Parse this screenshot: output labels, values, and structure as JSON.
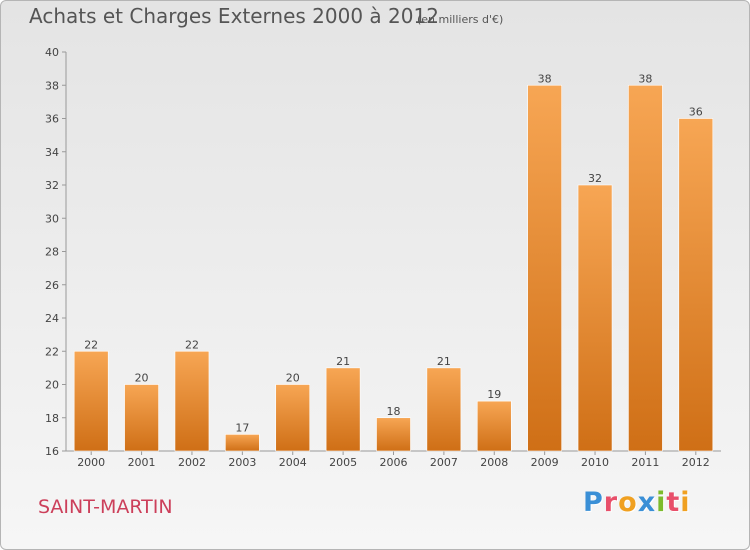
{
  "header": {
    "title": "Achats et Charges Externes 2000 à 2012",
    "subtitle": "(en milliers d'€)"
  },
  "footer": {
    "commune": "SAINT-MARTIN",
    "logo_text": "Proxiti"
  },
  "colors": {
    "bar_top": "#f7a654",
    "bar_bottom": "#cf6f16",
    "commune_text": "#cc3f5a",
    "logo_letters": [
      "#3a8fd6",
      "#e84f6a",
      "#f0a020",
      "#3a8fd6",
      "#7cbb2c",
      "#e84f6a",
      "#f0a020"
    ]
  },
  "chart_data": {
    "type": "bar",
    "title": "Achats et Charges Externes 2000 à 2012",
    "subtitle": "(en milliers d'€)",
    "xlabel": "",
    "ylabel": "",
    "categories": [
      "2000",
      "2001",
      "2002",
      "2003",
      "2004",
      "2005",
      "2006",
      "2007",
      "2008",
      "2009",
      "2010",
      "2011",
      "2012"
    ],
    "values": [
      22,
      20,
      22,
      17,
      20,
      21,
      18,
      21,
      19,
      38,
      32,
      38,
      36
    ],
    "ylim": [
      16,
      40
    ],
    "yticks": [
      "16",
      "18",
      "20",
      "22",
      "24",
      "26",
      "28",
      "30",
      "32",
      "34",
      "36",
      "38",
      "40"
    ],
    "grid": false,
    "legend": "none"
  }
}
